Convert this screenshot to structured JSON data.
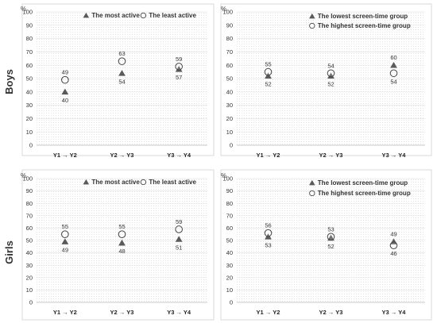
{
  "row_labels": {
    "boys": "Boys",
    "girls": "Girls"
  },
  "chart_data": [
    {
      "type": "scatter",
      "row": "Boys",
      "categories": [
        "Y1 → Y2",
        "Y2 → Y3",
        "Y3 → Y4"
      ],
      "ylabel": "%",
      "ylim": [
        0,
        100
      ],
      "yticks": [
        0,
        10,
        20,
        30,
        40,
        50,
        60,
        70,
        80,
        90,
        100
      ],
      "grid": true,
      "legend": "top-center",
      "series": [
        {
          "name": "The most active",
          "marker": "filled-triangle",
          "values": [
            40,
            54,
            57
          ],
          "labels": [
            "40",
            "54",
            "57"
          ]
        },
        {
          "name": "The least active",
          "marker": "open-circle",
          "values": [
            49,
            63,
            59
          ],
          "labels": [
            "49",
            "63",
            "59"
          ]
        }
      ]
    },
    {
      "type": "scatter",
      "row": "Boys",
      "categories": [
        "Y1 → Y2",
        "Y2 → Y3",
        "Y3 → Y4"
      ],
      "ylabel": "%",
      "ylim": [
        0,
        100
      ],
      "yticks": [
        0,
        10,
        20,
        30,
        40,
        50,
        60,
        70,
        80,
        90,
        100
      ],
      "grid": true,
      "legend": "top-center",
      "series": [
        {
          "name": "The lowest screen-time group",
          "marker": "filled-triangle",
          "values": [
            52,
            52,
            60
          ],
          "labels": [
            "52",
            "52",
            "60"
          ]
        },
        {
          "name": "The highest screen-time group",
          "marker": "open-circle",
          "values": [
            55,
            54,
            54
          ],
          "labels": [
            "55",
            "54",
            "54"
          ]
        }
      ]
    },
    {
      "type": "scatter",
      "row": "Girls",
      "categories": [
        "Y1 → Y2",
        "Y2 → Y3",
        "Y3 → Y4"
      ],
      "ylabel": "%",
      "ylim": [
        0,
        100
      ],
      "yticks": [
        0,
        10,
        20,
        30,
        40,
        50,
        60,
        70,
        80,
        90,
        100
      ],
      "grid": true,
      "legend": "top-center",
      "series": [
        {
          "name": "The most active",
          "marker": "filled-triangle",
          "values": [
            49,
            48,
            51
          ],
          "labels": [
            "49",
            "48",
            "51"
          ]
        },
        {
          "name": "The least active",
          "marker": "open-circle",
          "values": [
            55,
            55,
            59
          ],
          "labels": [
            "55",
            "55",
            "59"
          ]
        }
      ]
    },
    {
      "type": "scatter",
      "row": "Girls",
      "categories": [
        "Y1 → Y2",
        "Y2 → Y3",
        "Y3 → Y4"
      ],
      "ylabel": "%",
      "ylim": [
        0,
        100
      ],
      "yticks": [
        0,
        10,
        20,
        30,
        40,
        50,
        60,
        70,
        80,
        90,
        100
      ],
      "grid": true,
      "legend": "top-center",
      "series": [
        {
          "name": "The lowest screen-time group",
          "marker": "filled-triangle",
          "values": [
            53,
            52,
            49
          ],
          "labels": [
            "53",
            "52",
            "49"
          ]
        },
        {
          "name": "The highest screen-time group",
          "marker": "open-circle",
          "values": [
            56,
            53,
            46
          ],
          "labels": [
            "56",
            "53",
            "46"
          ]
        }
      ]
    }
  ],
  "colors": {
    "marker_fill": "#5a5a5a",
    "marker_stroke": "#444444",
    "grid": "#e6e6e6",
    "frame": "#cfcfcf",
    "text": "#333333"
  }
}
